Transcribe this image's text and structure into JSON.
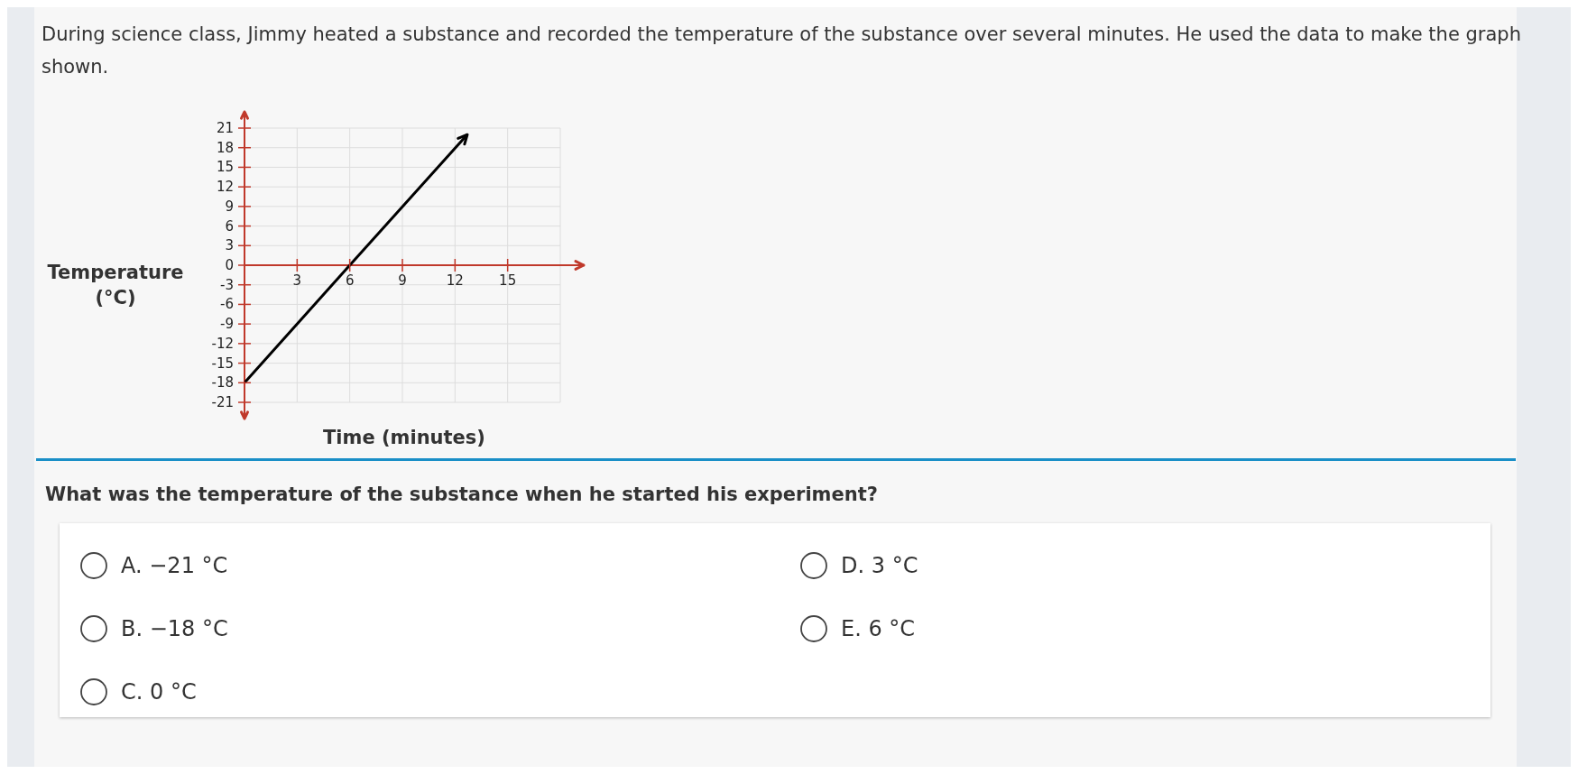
{
  "chart_data": {
    "type": "line",
    "title": "During science class, Jimmy heated a substance and recorded the temperature of the substance over several minutes. He used the data to make the graph shown.",
    "xlabel": "Time (minutes)",
    "ylabel": "Temperature (°C)",
    "annotations": [
      "What was the temperature of the substance when he started his experiment?",
      "A. −21 °C",
      "B. −18 °C",
      "C. 0 °C",
      "D. 3 °C",
      "E. 6 °C"
    ],
    "x": [
      0,
      6,
      12.7
    ],
    "series": [
      {
        "color": "#000000",
        "values": [
          -18,
          0,
          20
        ]
      }
    ],
    "xlim": [
      0,
      18
    ],
    "xticks": [
      3,
      6,
      9,
      12,
      15,
      {
        "value": 18,
        "label": null
      }
    ],
    "ylim": [
      -21,
      21
    ],
    "yticks": [
      -21,
      -18,
      -15,
      -12,
      -9,
      -6,
      -3,
      0,
      3,
      6,
      9,
      12,
      15,
      18,
      21
    ],
    "grid": true,
    "marker": "none",
    "line_style": "solid"
  }
}
